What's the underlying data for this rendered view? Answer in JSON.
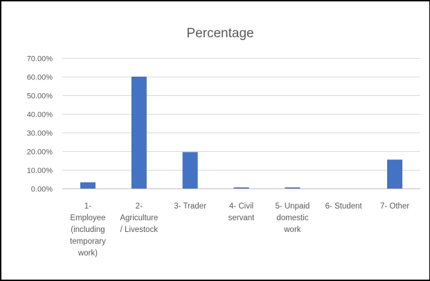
{
  "chart_data": {
    "type": "bar",
    "title": "Percentage",
    "xlabel": "",
    "ylabel": "",
    "categories": [
      [
        "1-",
        "Employee",
        "(including",
        "temporary",
        "work)"
      ],
      [
        "2-",
        "Agriculture",
        "/ Livestock"
      ],
      [
        "3- Trader"
      ],
      [
        "4- Civil",
        "servant"
      ],
      [
        "5- Unpaid",
        "domestic",
        "work"
      ],
      [
        "6- Student"
      ],
      [
        "7- Other"
      ]
    ],
    "series": [
      {
        "values": [
          3.3,
          60.0,
          19.5,
          0.6,
          0.6,
          0.0,
          15.5
        ]
      }
    ],
    "ylim": [
      0,
      70
    ],
    "yticks": [
      0,
      10,
      20,
      30,
      40,
      50,
      60,
      70
    ],
    "ytick_labels": [
      "0.00%",
      "10.00%",
      "20.00%",
      "30.00%",
      "40.00%",
      "50.00%",
      "60.00%",
      "70.00%"
    ],
    "grid": true,
    "legend": "none",
    "colors": {
      "bar": "#4472c4"
    }
  }
}
